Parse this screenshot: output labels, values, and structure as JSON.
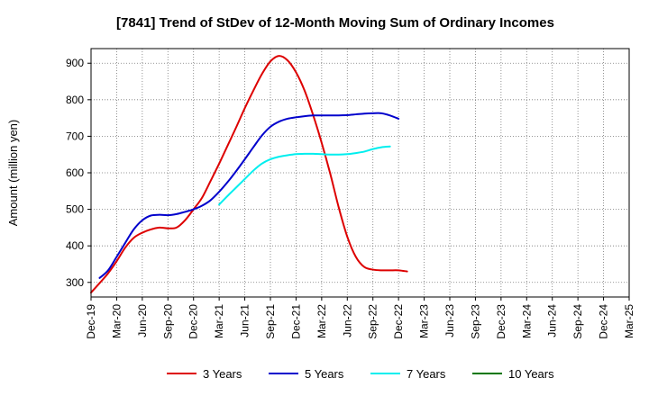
{
  "chart_data": {
    "type": "line",
    "title": "[7841]  Trend of StDev of 12-Month Moving Sum of Ordinary Incomes",
    "xlabel": "",
    "ylabel": "Amount (million yen)",
    "ylim": [
      260,
      940
    ],
    "yticks": [
      300,
      400,
      500,
      600,
      700,
      800,
      900
    ],
    "x_tick_labels": [
      "Dec-19",
      "Mar-20",
      "Jun-20",
      "Sep-20",
      "Dec-20",
      "Mar-21",
      "Jun-21",
      "Sep-21",
      "Dec-21",
      "Mar-22",
      "Jun-22",
      "Sep-22",
      "Dec-22",
      "Mar-23",
      "Jun-23",
      "Sep-23",
      "Dec-23",
      "Mar-24",
      "Jun-24",
      "Sep-24",
      "Dec-24",
      "Mar-25"
    ],
    "grid": true,
    "legend_position": "bottom",
    "series": [
      {
        "name": "3 Years",
        "color": "#dd0000",
        "start_index": 0,
        "values": [
          272,
          298,
          325,
          358,
          395,
          422,
          436,
          445,
          450,
          448,
          450,
          470,
          500,
          532,
          578,
          625,
          675,
          725,
          777,
          825,
          870,
          905,
          920,
          908,
          875,
          825,
          758,
          682,
          598,
          505,
          425,
          370,
          342,
          335,
          333,
          333,
          333,
          330
        ]
      },
      {
        "name": "5 Years",
        "color": "#0000cc",
        "start_index": 1,
        "values": [
          312,
          333,
          370,
          408,
          445,
          470,
          483,
          485,
          484,
          487,
          493,
          500,
          510,
          525,
          548,
          575,
          605,
          637,
          670,
          702,
          726,
          740,
          748,
          752,
          755,
          757,
          757,
          757,
          757,
          758,
          760,
          762,
          763,
          763,
          757,
          748
        ]
      },
      {
        "name": "7 Years",
        "color": "#00eeee",
        "start_index": 15,
        "values": [
          513,
          537,
          560,
          583,
          606,
          625,
          637,
          644,
          648,
          651,
          652,
          652,
          651,
          650,
          650,
          651,
          654,
          658,
          665,
          670,
          672
        ]
      },
      {
        "name": "10 Years",
        "color": "#007700",
        "start_index": 0,
        "values": []
      }
    ]
  }
}
